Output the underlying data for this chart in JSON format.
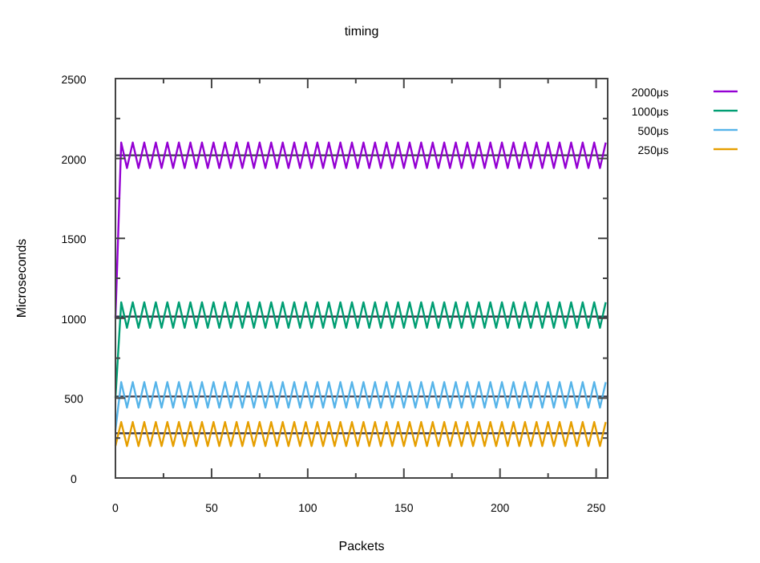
{
  "chart_data": {
    "type": "line",
    "title": "timing",
    "xlabel": "Packets",
    "ylabel": "Microseconds",
    "x": [
      0,
      3,
      6,
      9,
      12,
      15,
      18,
      21,
      24,
      27,
      30,
      33,
      36,
      39,
      42,
      45,
      48,
      51,
      54,
      57,
      60,
      63,
      66,
      69,
      72,
      75,
      78,
      81,
      84,
      87,
      90,
      93,
      96,
      99,
      102,
      105,
      108,
      111,
      114,
      117,
      120,
      123,
      126,
      129,
      132,
      135,
      138,
      141,
      144,
      147,
      150,
      153,
      156,
      159,
      162,
      165,
      168,
      171,
      174,
      177,
      180,
      183,
      186,
      189,
      192,
      195,
      198,
      201,
      204,
      207,
      210,
      213,
      216,
      219,
      222,
      225,
      228,
      231,
      234,
      237,
      240,
      243,
      246,
      249,
      252,
      255
    ],
    "series": [
      {
        "name": "2000μs",
        "color": "#9400d3",
        "values": [
          1000,
          2100,
          1940,
          2100,
          1940,
          2100,
          1940,
          2100,
          1940,
          2100,
          1940,
          2100,
          1940,
          2100,
          1940,
          2100,
          1940,
          2100,
          1940,
          2100,
          1940,
          2100,
          1940,
          2100,
          1940,
          2100,
          1940,
          2100,
          1940,
          2100,
          1940,
          2100,
          1940,
          2100,
          1940,
          2100,
          1940,
          2100,
          1940,
          2100,
          1940,
          2100,
          1940,
          2100,
          1940,
          2100,
          1940,
          2100,
          1940,
          2100,
          1940,
          2100,
          1940,
          2100,
          1940,
          2100,
          1940,
          2100,
          1940,
          2100,
          1940,
          2100,
          1940,
          2100,
          1940,
          2100,
          1940,
          2100,
          1940,
          2100,
          1940,
          2100,
          1940,
          2100,
          1940,
          2100,
          1940,
          2100,
          1940,
          2100,
          1940,
          2100,
          1940,
          2100,
          1940,
          2100
        ]
      },
      {
        "name": "1000μs",
        "color": "#009e73",
        "values": [
          500,
          1100,
          940,
          1100,
          940,
          1100,
          940,
          1100,
          940,
          1100,
          940,
          1100,
          940,
          1100,
          940,
          1100,
          940,
          1100,
          940,
          1100,
          940,
          1100,
          940,
          1100,
          940,
          1100,
          940,
          1100,
          940,
          1100,
          940,
          1100,
          940,
          1100,
          940,
          1100,
          940,
          1100,
          940,
          1100,
          940,
          1100,
          940,
          1100,
          940,
          1100,
          940,
          1100,
          940,
          1100,
          940,
          1100,
          940,
          1100,
          940,
          1100,
          940,
          1100,
          940,
          1100,
          940,
          1100,
          940,
          1100,
          940,
          1100,
          940,
          1100,
          940,
          1100,
          940,
          1100,
          940,
          1100,
          940,
          1100,
          940,
          1100,
          940,
          1100,
          940,
          1100,
          940,
          1100,
          940,
          1100
        ]
      },
      {
        "name": "500μs",
        "color": "#56b4e9",
        "values": [
          300,
          600,
          440,
          600,
          440,
          600,
          440,
          600,
          440,
          600,
          440,
          600,
          440,
          600,
          440,
          600,
          440,
          600,
          440,
          600,
          440,
          600,
          440,
          600,
          440,
          600,
          440,
          600,
          440,
          600,
          440,
          600,
          440,
          600,
          440,
          600,
          440,
          600,
          440,
          600,
          440,
          600,
          440,
          600,
          440,
          600,
          440,
          600,
          440,
          600,
          440,
          600,
          440,
          600,
          440,
          600,
          440,
          600,
          440,
          600,
          440,
          600,
          440,
          600,
          440,
          600,
          440,
          600,
          440,
          600,
          440,
          600,
          440,
          600,
          440,
          600,
          440,
          600,
          440,
          600,
          440,
          600,
          440,
          600,
          440,
          600
        ]
      },
      {
        "name": "250μs",
        "color": "#e69f00",
        "values": [
          200,
          350,
          200,
          350,
          200,
          350,
          200,
          350,
          200,
          350,
          200,
          350,
          200,
          350,
          200,
          350,
          200,
          350,
          200,
          350,
          200,
          350,
          200,
          350,
          200,
          350,
          200,
          350,
          200,
          350,
          200,
          350,
          200,
          350,
          200,
          350,
          200,
          350,
          200,
          350,
          200,
          350,
          200,
          350,
          200,
          350,
          200,
          350,
          200,
          350,
          200,
          350,
          200,
          350,
          200,
          350,
          200,
          350,
          200,
          350,
          200,
          350,
          200,
          350,
          200,
          350,
          200,
          350,
          200,
          350,
          200,
          350,
          200,
          350,
          200,
          350,
          200,
          350,
          200,
          350,
          200,
          350,
          200,
          350,
          200,
          350
        ]
      }
    ],
    "ref_lines": [
      {
        "axis": "y",
        "value": 2020,
        "color": "#3a3a4a"
      },
      {
        "axis": "y",
        "value": 1010,
        "color": "#3a3a4a"
      },
      {
        "axis": "y",
        "value": 510,
        "color": "#3a3a4a"
      },
      {
        "axis": "y",
        "value": 280,
        "color": "#3a3a4a"
      }
    ],
    "xlim": [
      0,
      256
    ],
    "ylim": [
      0,
      2500
    ],
    "xticks": [
      0,
      {
        "value": 25,
        "label": null
      },
      50,
      {
        "value": 75,
        "label": null
      },
      100,
      {
        "value": 125,
        "label": null
      },
      150,
      {
        "value": 175,
        "label": null
      },
      200,
      {
        "value": 225,
        "label": null
      },
      250
    ],
    "yticks": [
      0,
      {
        "value": 250,
        "label": null
      },
      500,
      {
        "value": 750,
        "label": null
      },
      1000,
      {
        "value": 1250,
        "label": null
      },
      1500,
      {
        "value": 1750,
        "label": null
      },
      2000,
      {
        "value": 2250,
        "label": null
      },
      2500
    ],
    "grid": false,
    "legend": "top right",
    "marker": "none",
    "line_style": "solid"
  }
}
